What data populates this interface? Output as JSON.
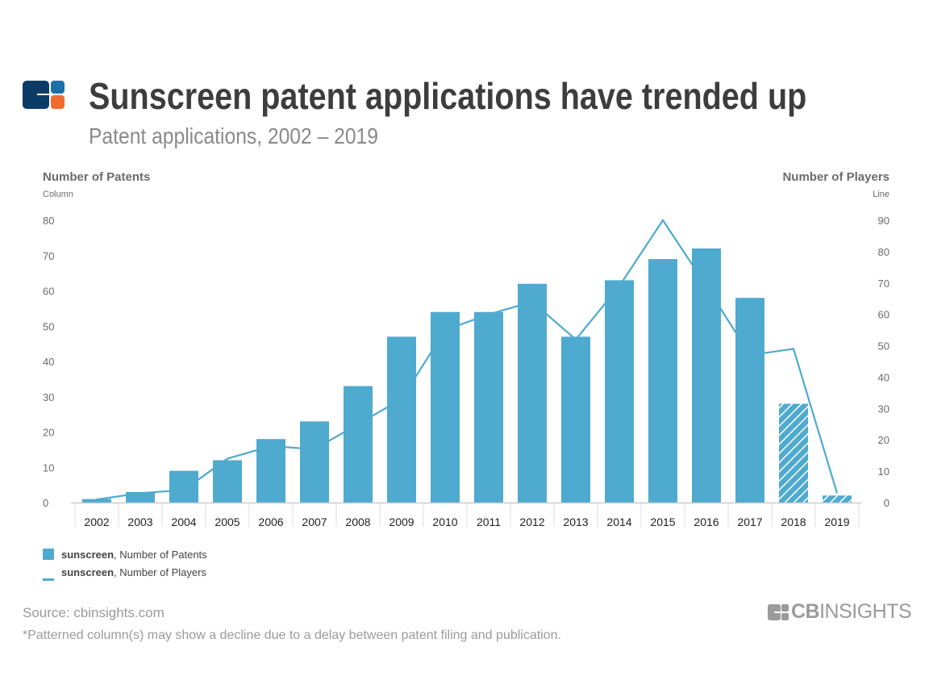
{
  "header": {
    "title": "Sunscreen patent applications have trended up",
    "subtitle": "Patent applications, 2002 – 2019",
    "logo_colors": {
      "navy": "#0b3c68",
      "blue": "#1e6fa6",
      "orange": "#f26b2e"
    }
  },
  "footer": {
    "source": "Source: cbinsights.com",
    "note": "*Patterned column(s) may show a decline due to a delay between patent filing and publication.",
    "brand": "CBINSIGHTS"
  },
  "chart_data": {
    "type": "bar+line",
    "categories": [
      "2002",
      "2003",
      "2004",
      "2005",
      "2006",
      "2007",
      "2008",
      "2009",
      "2010",
      "2011",
      "2012",
      "2013",
      "2014",
      "2015",
      "2016",
      "2017",
      "2018",
      "2019"
    ],
    "left_axis": {
      "title": "Number of Patents",
      "subtitle": "Column",
      "range": [
        0,
        80
      ],
      "ticks": [
        0,
        10,
        20,
        30,
        40,
        50,
        60,
        70,
        80
      ]
    },
    "right_axis": {
      "title": "Number of Players",
      "subtitle": "Line",
      "range": [
        0,
        90
      ],
      "ticks": [
        0,
        10,
        20,
        30,
        40,
        50,
        60,
        70,
        80,
        90
      ]
    },
    "series": [
      {
        "name": "Number of Patents",
        "legend_bold": "sunscreen",
        "legend_text": ", Number of Patents",
        "type": "bar",
        "axis": "left",
        "color": "#4faacf",
        "values": [
          1,
          3,
          9,
          12,
          18,
          23,
          33,
          47,
          54,
          54,
          62,
          47,
          63,
          69,
          72,
          58,
          28,
          2
        ],
        "patterned": [
          "2018",
          "2019"
        ]
      },
      {
        "name": "Number of Players",
        "legend_bold": "sunscreen",
        "legend_text": ", Number of Players",
        "type": "line",
        "axis": "right",
        "color": "#4faacf",
        "values": [
          1,
          3,
          4,
          14,
          18,
          17,
          25,
          33,
          55,
          60,
          64,
          52,
          69,
          90,
          69,
          47,
          49,
          3
        ]
      }
    ],
    "grid": false,
    "legend_placement": "bottom-left"
  }
}
